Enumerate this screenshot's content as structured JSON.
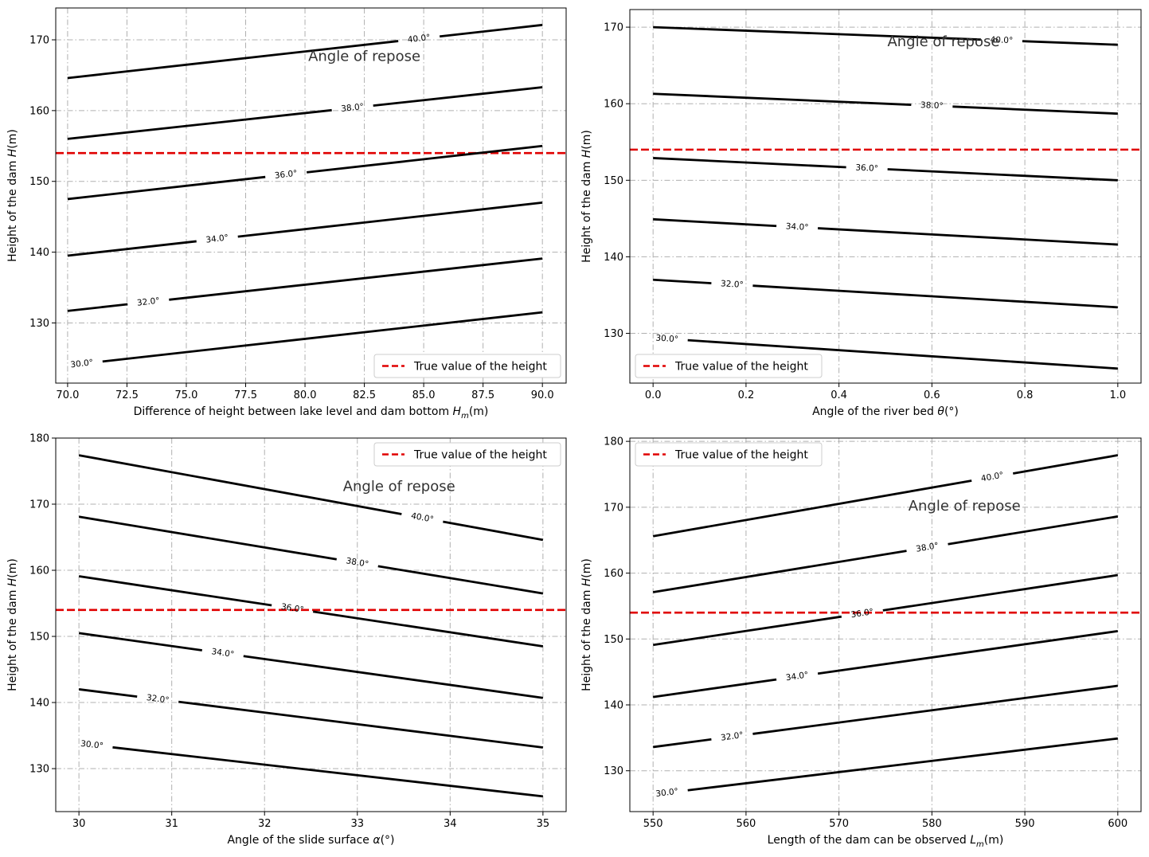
{
  "chart_data": [
    {
      "type": "line",
      "xlabel_main": "Difference of height between lake level and dam bottom ",
      "xlabel_symbol": "H",
      "xlabel_sub": "m",
      "xlabel_unit": "(m)",
      "ylabel_main": "Height of the dam ",
      "ylabel_symbol": "H",
      "ylabel_unit": "(m)",
      "xlim": [
        69.5,
        91.0
      ],
      "ylim": [
        121.5,
        174.5
      ],
      "xticks": [
        70.0,
        72.5,
        75.0,
        77.5,
        80.0,
        82.5,
        85.0,
        87.5,
        90.0
      ],
      "xtick_labels": [
        "70.0",
        "72.5",
        "75.0",
        "77.5",
        "80.0",
        "82.5",
        "85.0",
        "87.5",
        "90.0"
      ],
      "yticks": [
        130,
        140,
        150,
        160,
        170
      ],
      "ytick_labels": [
        "130",
        "140",
        "150",
        "160",
        "170"
      ],
      "annotation": "Angle of repose",
      "annotation_pos": [
        82.5,
        167
      ],
      "legend": {
        "label": "True value of the height",
        "position": "lower-right"
      },
      "true_height": 154,
      "series": [
        {
          "label": "30.0°",
          "x": [
            70,
            90
          ],
          "y": [
            124.0,
            131.5
          ],
          "label_x": 70.6
        },
        {
          "label": "32.0°",
          "x": [
            70,
            90
          ],
          "y": [
            131.7,
            139.1
          ],
          "label_x": 73.4
        },
        {
          "label": "34.0°",
          "x": [
            70,
            90
          ],
          "y": [
            139.5,
            147.0
          ],
          "label_x": 76.3
        },
        {
          "label": "36.0°",
          "x": [
            70,
            90
          ],
          "y": [
            147.5,
            155.0
          ],
          "label_x": 79.2
        },
        {
          "label": "38.0°",
          "x": [
            70,
            90
          ],
          "y": [
            156.0,
            163.3
          ],
          "label_x": 82.0
        },
        {
          "label": "40.0°",
          "x": [
            70,
            90
          ],
          "y": [
            164.6,
            172.1
          ],
          "label_x": 84.8
        }
      ]
    },
    {
      "type": "line",
      "xlabel_main": "Angle of the river bed ",
      "xlabel_symbol": "θ",
      "xlabel_sub": "",
      "xlabel_unit": "(°)",
      "ylabel_main": "Height of the dam ",
      "ylabel_symbol": "H",
      "ylabel_unit": "(m)",
      "xlim": [
        -0.05,
        1.05
      ],
      "ylim": [
        123.5,
        172.3
      ],
      "xticks": [
        0.0,
        0.2,
        0.4,
        0.6,
        0.8,
        1.0
      ],
      "xtick_labels": [
        "0.0",
        "0.2",
        "0.4",
        "0.6",
        "0.8",
        "1.0"
      ],
      "yticks": [
        130,
        140,
        150,
        160,
        170
      ],
      "ytick_labels": [
        "130",
        "140",
        "150",
        "160",
        "170"
      ],
      "annotation": "Angle of repose",
      "annotation_pos": [
        0.625,
        167.5
      ],
      "legend": {
        "label": "True value of the height",
        "position": "lower-left"
      },
      "true_height": 154,
      "series": [
        {
          "label": "30.0°",
          "x": [
            0,
            1
          ],
          "y": [
            129.4,
            125.4
          ],
          "label_x": 0.03
        },
        {
          "label": "32.0°",
          "x": [
            0,
            1
          ],
          "y": [
            137.0,
            133.4
          ],
          "label_x": 0.17
        },
        {
          "label": "34.0°",
          "x": [
            0,
            1
          ],
          "y": [
            144.9,
            141.6
          ],
          "label_x": 0.31
        },
        {
          "label": "36.0°",
          "x": [
            0,
            1
          ],
          "y": [
            152.9,
            150.0
          ],
          "label_x": 0.46
        },
        {
          "label": "38.0°",
          "x": [
            0,
            1
          ],
          "y": [
            161.3,
            158.7
          ],
          "label_x": 0.6
        },
        {
          "label": "40.0°",
          "x": [
            0,
            1
          ],
          "y": [
            170.0,
            167.7
          ],
          "label_x": 0.75
        }
      ]
    },
    {
      "type": "line",
      "xlabel_main": "Angle of the slide surface ",
      "xlabel_symbol": "α",
      "xlabel_sub": "",
      "xlabel_unit": "(°)",
      "ylabel_main": "Height of the dam ",
      "ylabel_symbol": "H",
      "ylabel_unit": "(m)",
      "xlim": [
        29.75,
        35.25
      ],
      "ylim": [
        123.5,
        180.0
      ],
      "xticks": [
        30,
        31,
        32,
        33,
        34,
        35
      ],
      "xtick_labels": [
        "30",
        "31",
        "32",
        "33",
        "34",
        "35"
      ],
      "yticks": [
        130,
        140,
        150,
        160,
        170,
        180
      ],
      "ytick_labels": [
        "130",
        "140",
        "150",
        "160",
        "170",
        "180"
      ],
      "annotation": "Angle of repose",
      "annotation_pos": [
        33.45,
        172
      ],
      "legend": {
        "label": "True value of the height",
        "position": "upper-right"
      },
      "true_height": 154,
      "series": [
        {
          "label": "30.0°",
          "x": [
            30,
            35
          ],
          "y": [
            133.8,
            125.8
          ],
          "label_x": 30.14
        },
        {
          "label": "32.0°",
          "x": [
            30,
            35
          ],
          "y": [
            142.0,
            133.2
          ],
          "label_x": 30.85
        },
        {
          "label": "34.0°",
          "x": [
            30,
            35
          ],
          "y": [
            150.5,
            140.7
          ],
          "label_x": 31.55
        },
        {
          "label": "36.0°",
          "x": [
            30,
            35
          ],
          "y": [
            159.1,
            148.5
          ],
          "label_x": 32.3
        },
        {
          "label": "38.0°",
          "x": [
            30,
            35
          ],
          "y": [
            168.1,
            156.5
          ],
          "label_x": 33.0
        },
        {
          "label": "40.0°",
          "x": [
            30,
            35
          ],
          "y": [
            177.4,
            164.6
          ],
          "label_x": 33.7
        }
      ]
    },
    {
      "type": "line",
      "xlabel_main": "Length of the dam can be observed ",
      "xlabel_symbol": "L",
      "xlabel_sub": "m",
      "xlabel_unit": "(m)",
      "ylabel_main": "Height of the dam ",
      "ylabel_symbol": "H",
      "ylabel_unit": "(m)",
      "xlim": [
        547.5,
        602.5
      ],
      "ylim": [
        123.8,
        180.5
      ],
      "xticks": [
        550,
        560,
        570,
        580,
        590,
        600
      ],
      "xtick_labels": [
        "550",
        "560",
        "570",
        "580",
        "590",
        "600"
      ],
      "yticks": [
        130,
        140,
        150,
        160,
        170,
        180
      ],
      "ytick_labels": [
        "130",
        "140",
        "150",
        "160",
        "170",
        "180"
      ],
      "annotation": "Angle of repose",
      "annotation_pos": [
        583.5,
        169.5
      ],
      "legend": {
        "label": "True value of the height",
        "position": "upper-left"
      },
      "true_height": 154,
      "series": [
        {
          "label": "30.0°",
          "x": [
            550,
            600
          ],
          "y": [
            126.4,
            134.9
          ],
          "label_x": 551.5
        },
        {
          "label": "32.0°",
          "x": [
            550,
            600
          ],
          "y": [
            133.6,
            142.9
          ],
          "label_x": 558.5
        },
        {
          "label": "34.0°",
          "x": [
            550,
            600
          ],
          "y": [
            141.2,
            151.2
          ],
          "label_x": 565.5
        },
        {
          "label": "36.0°",
          "x": [
            550,
            600
          ],
          "y": [
            149.1,
            159.7
          ],
          "label_x": 572.5
        },
        {
          "label": "38.0°",
          "x": [
            550,
            600
          ],
          "y": [
            157.1,
            168.6
          ],
          "label_x": 579.5
        },
        {
          "label": "40.0°",
          "x": [
            550,
            600
          ],
          "y": [
            165.6,
            177.9
          ],
          "label_x": 586.5
        }
      ]
    }
  ],
  "colors": {
    "series": "#000000",
    "true_height": "#e00000",
    "grid": "#b0b0b0"
  }
}
